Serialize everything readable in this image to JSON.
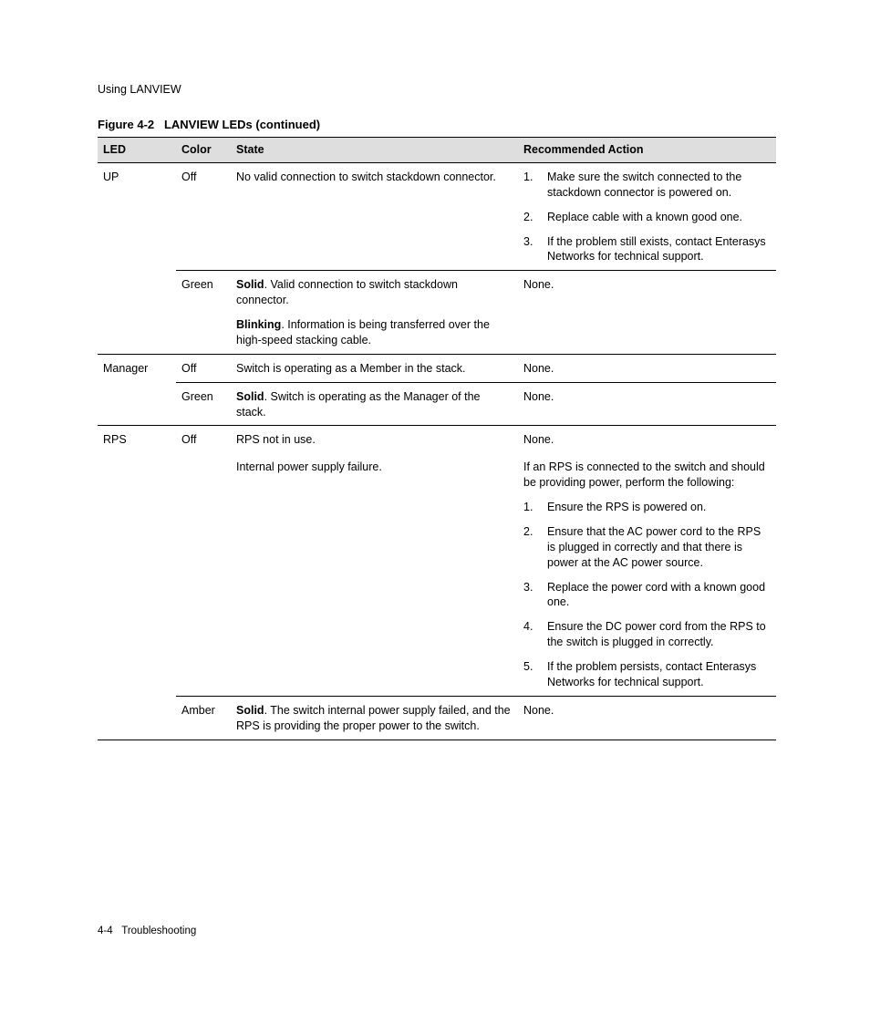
{
  "header": {
    "section": "Using LANVIEW"
  },
  "figure": {
    "label": "Figure 4-2",
    "title": "LANVIEW LEDs (continued)"
  },
  "table": {
    "headers": {
      "led": "LED",
      "color": "Color",
      "state": "State",
      "action": "Recommended Action"
    },
    "rows": [
      {
        "group_border": true,
        "led": "UP",
        "color": "Off",
        "state_plain": "No valid connection to switch stackdown connector.",
        "action_list": [
          "Make sure the switch connected to the stackdown connector is powered on.",
          "Replace cable with a known good one.",
          "If the problem still exists, contact Enterasys Networks for technical support."
        ]
      },
      {
        "sub_border": true,
        "led": "",
        "color": "Green",
        "state_parts": [
          {
            "bold": "Solid",
            "rest": ". Valid connection to switch stackdown connector."
          },
          {
            "bold": "Blinking",
            "rest": ". Information is being transferred over the high-speed stacking cable."
          }
        ],
        "action_plain": "None."
      },
      {
        "group_border": true,
        "led": "Manager",
        "color": "Off",
        "state_plain": "Switch is operating as a Member in the stack.",
        "action_plain": "None."
      },
      {
        "sub_border": true,
        "led": "",
        "color": "Green",
        "state_parts": [
          {
            "bold": "Solid",
            "rest": ". Switch is operating as the Manager of the stack."
          }
        ],
        "action_plain": "None."
      },
      {
        "group_border": true,
        "led": "RPS",
        "color": "Off",
        "state_plain": "RPS not in use.",
        "action_plain": "None."
      },
      {
        "led": "",
        "color": "",
        "state_plain": "Internal power supply failure.",
        "action_intro": "If an RPS is connected to the switch and should be providing power, perform the following:",
        "action_list": [
          "Ensure the RPS is powered on.",
          "Ensure that the AC power cord to the RPS is plugged in correctly and that there is power at the AC power source.",
          "Replace the power cord with a known good one.",
          "Ensure the DC power cord from the RPS to the switch is plugged in correctly.",
          "If the problem persists, contact Enterasys Networks for technical support."
        ]
      },
      {
        "sub_border": true,
        "last": true,
        "led": "",
        "color": "Amber",
        "state_parts": [
          {
            "bold": "Solid",
            "rest": ". The switch internal power supply failed, and the RPS is providing the proper power to the switch."
          }
        ],
        "action_plain": "None."
      }
    ]
  },
  "footer": {
    "page": "4-4",
    "chapter": "Troubleshooting"
  }
}
